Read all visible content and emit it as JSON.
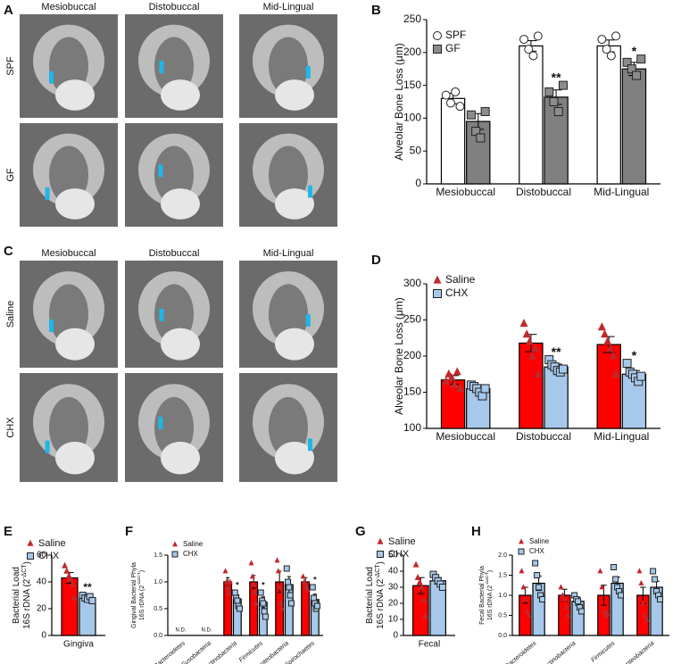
{
  "image_panels": [
    {
      "panel": "A",
      "columns": [
        "Mesiobuccal",
        "Distobuccal",
        "Mid-Lingual"
      ],
      "rows": [
        "SPF",
        "GF"
      ]
    },
    {
      "panel": "C",
      "columns": [
        "Mesiobuccal",
        "Distobuccal",
        "Mid-Lingual"
      ],
      "rows": [
        "Saline",
        "CHX"
      ]
    }
  ],
  "chart_data": [
    {
      "panel": "B",
      "type": "bar",
      "ylabel": [
        {
          "text": "Alveolar Bone Loss (μm)"
        }
      ],
      "categories": [
        "Mesiobuccal",
        "Distobuccal",
        "Mid-Lingual"
      ],
      "ylim": [
        0,
        250
      ],
      "yticks": [
        0,
        50,
        100,
        150,
        200,
        250
      ],
      "series": [
        {
          "name": "SPF",
          "color": "#ffffff",
          "point_color": "#ffffff",
          "marker": "circle",
          "values": [
            130,
            210,
            210
          ],
          "errors": [
            8,
            8,
            9
          ],
          "points": [
            [
              135,
              123,
              140,
              118
            ],
            [
              220,
              205,
              195,
              225
            ],
            [
              220,
              205,
              195,
              225
            ]
          ],
          "significance": [
            null,
            null,
            null
          ]
        },
        {
          "name": "GF",
          "color": "#808080",
          "point_color": "#8c8c8c",
          "marker": "square",
          "values": [
            95,
            132,
            175
          ],
          "errors": [
            12,
            11,
            10
          ],
          "points": [
            [
              105,
              80,
              70,
              110
            ],
            [
              140,
              125,
              110,
              150
            ],
            [
              185,
              175,
              165,
              190
            ]
          ],
          "significance": [
            null,
            "**",
            "*"
          ]
        }
      ]
    },
    {
      "panel": "D",
      "type": "bar",
      "ylabel": [
        {
          "text": "Alveolar Bone Loss (μm)"
        }
      ],
      "categories": [
        "Mesiobuccal",
        "Distobuccal",
        "Mid-Lingual"
      ],
      "ylim": [
        100,
        300
      ],
      "yticks": [
        100,
        150,
        200,
        250,
        300
      ],
      "series": [
        {
          "name": "Saline",
          "color": "#ff0000",
          "point_color": "#c0282c",
          "marker": "triangle",
          "values": [
            167,
            218,
            216
          ],
          "errors": [
            6,
            12,
            11
          ],
          "points": [
            [
              165,
              175,
              170,
              160,
              178,
              155
            ],
            [
              245,
              230,
              220,
              200,
              210,
              175
            ],
            [
              240,
              230,
              220,
              210,
              200,
              175
            ]
          ],
          "significance": [
            null,
            null,
            null
          ]
        },
        {
          "name": "CHX",
          "color": "#a6c8ea",
          "point_color": "#a6c8ea",
          "marker": "square",
          "values": [
            155,
            185,
            175
          ],
          "errors": [
            4,
            4,
            5
          ],
          "points": [
            [
              160,
              158,
              155,
              150,
              145,
              155
            ],
            [
              195,
              188,
              185,
              180,
              178,
              182
            ],
            [
              190,
              178,
              175,
              170,
              165,
              172
            ]
          ],
          "significance": [
            null,
            "**",
            "*"
          ]
        }
      ]
    },
    {
      "panel": "E",
      "type": "bar",
      "ylabel": [
        {
          "text": "Bacterial Load"
        },
        {
          "text": "16S rDNA (2",
          "sup": "-ΔCT",
          "tail": ")"
        }
      ],
      "categories": [
        "Gingiva"
      ],
      "ylim": [
        0,
        60
      ],
      "yticks": [
        0,
        20,
        40,
        60
      ],
      "series": [
        {
          "name": "Saline",
          "color": "#ff0000",
          "point_color": "#c0282c",
          "marker": "triangle",
          "values": [
            43
          ],
          "errors": [
            4
          ],
          "points": [
            [
              52,
              48,
              44,
              42,
              38,
              28
            ]
          ],
          "significance": [
            null
          ]
        },
        {
          "name": "CHX",
          "color": "#a6c8ea",
          "point_color": "#a6c8ea",
          "marker": "square",
          "values": [
            28
          ],
          "errors": [
            1.5
          ],
          "points": [
            [
              30,
              28,
              27,
              29,
              26
            ]
          ],
          "significance": [
            "**"
          ]
        }
      ]
    },
    {
      "panel": "F",
      "type": "bar",
      "rotate_labels": true,
      "ylabel": [
        {
          "text": "Gingival Bacterial Phyla"
        },
        {
          "text": "16S rDNA (2",
          "sup": "-ΔΔCT",
          "tail": ")"
        }
      ],
      "categories": [
        "Bacteroidetes",
        "Fusobacteria",
        "Actinobacteria",
        "Firmicutes",
        "Proteobacteria",
        "Spirochaetes"
      ],
      "nd_labels": [
        "N.D.",
        "N.D.",
        null,
        null,
        null,
        null
      ],
      "ylim": [
        0,
        1.5
      ],
      "yticks": [
        {
          "value": 0,
          "label": "0.0"
        },
        0.5,
        {
          "value": 1,
          "label": "1.0"
        },
        1.5
      ],
      "series": [
        {
          "name": "Saline",
          "color": "#ff0000",
          "point_color": "#c0282c",
          "marker": "triangle",
          "values": [
            null,
            null,
            1.0,
            1.0,
            1.0,
            1.0
          ],
          "errors": [
            null,
            null,
            0.08,
            0.12,
            0.2,
            0.08
          ],
          "points": [
            [],
            [],
            [
              1.2,
              1.0,
              0.9,
              0.8,
              1.0
            ],
            [
              1.35,
              1.1,
              0.95,
              0.8,
              0.6
            ],
            [
              1.4,
              1.2,
              0.9,
              0.6,
              0.5
            ],
            [
              1.1,
              1.0,
              0.95,
              0.9,
              0.85
            ]
          ],
          "significance": [
            null,
            null,
            null,
            null,
            null,
            null
          ]
        },
        {
          "name": "CHX",
          "color": "#a6c8ea",
          "point_color": "#a6c8ea",
          "marker": "square",
          "values": [
            null,
            null,
            0.68,
            0.62,
            0.95,
            0.67
          ],
          "errors": [
            null,
            null,
            0.08,
            0.1,
            0.15,
            0.1
          ],
          "points": [
            [],
            [],
            [
              0.8,
              0.7,
              0.65,
              0.55,
              0.5
            ],
            [
              0.8,
              0.65,
              0.6,
              0.45,
              0.35
            ],
            [
              1.25,
              1.0,
              0.9,
              0.75,
              0.6
            ],
            [
              0.9,
              0.7,
              0.6,
              0.5,
              0.55
            ]
          ],
          "significance": [
            null,
            null,
            "*",
            "*",
            null,
            "*"
          ]
        }
      ]
    },
    {
      "panel": "G",
      "type": "bar",
      "ylabel": [
        {
          "text": "Bacterial Load"
        },
        {
          "text": "16S rDNA (2",
          "sup": "-ΔCT",
          "tail": ")"
        }
      ],
      "categories": [
        "Fecal"
      ],
      "ylim": [
        0,
        50
      ],
      "yticks": [
        0,
        10,
        20,
        30,
        40,
        50
      ],
      "series": [
        {
          "name": "Saline",
          "color": "#ff0000",
          "point_color": "#c0282c",
          "marker": "triangle",
          "values": [
            31
          ],
          "errors": [
            5
          ],
          "points": [
            [
              44,
              36,
              33,
              30,
              22,
              12
            ]
          ],
          "significance": [
            null
          ]
        },
        {
          "name": "CHX",
          "color": "#a6c8ea",
          "point_color": "#a6c8ea",
          "marker": "square",
          "values": [
            34
          ],
          "errors": [
            2
          ],
          "points": [
            [
              38,
              36,
              34,
              32,
              30
            ]
          ],
          "significance": [
            null
          ]
        }
      ]
    },
    {
      "panel": "H",
      "type": "bar",
      "rotate_labels": true,
      "ylabel": [
        {
          "text": "Fecal Bacterial Phyla"
        },
        {
          "text": "16S rDNA (2",
          "sup": "-ΔΔCT",
          "tail": ")"
        }
      ],
      "categories": [
        "Bacteroidetes",
        "Actinobacteria",
        "Firmicutes",
        "Proteobacteria"
      ],
      "ylim": [
        0,
        2
      ],
      "yticks": [
        {
          "value": 0,
          "label": "0.0"
        },
        0.5,
        {
          "value": 1,
          "label": "1.0"
        },
        1.5,
        {
          "value": 2,
          "label": "2.0"
        }
      ],
      "series": [
        {
          "name": "Saline",
          "color": "#ff0000",
          "point_color": "#c0282c",
          "marker": "triangle",
          "values": [
            1.0,
            1.0,
            1.0,
            1.0
          ],
          "errors": [
            0.2,
            0.15,
            0.25,
            0.2
          ],
          "points": [
            [
              1.6,
              1.2,
              0.9,
              0.6,
              0.5
            ],
            [
              1.2,
              1.0,
              0.9,
              0.7,
              0.5
            ],
            [
              1.6,
              1.2,
              0.6,
              0.5,
              0.55
            ],
            [
              1.6,
              1.3,
              0.8,
              0.5,
              0.4
            ]
          ],
          "significance": [
            null,
            null,
            null,
            null
          ]
        },
        {
          "name": "CHX",
          "color": "#a6c8ea",
          "point_color": "#a6c8ea",
          "marker": "square",
          "values": [
            1.3,
            0.85,
            1.3,
            1.2
          ],
          "errors": [
            0.18,
            0.1,
            0.15,
            0.15
          ],
          "points": [
            [
              1.8,
              1.5,
              1.2,
              1.0,
              0.9
            ],
            [
              1.0,
              0.9,
              0.85,
              0.7,
              0.6
            ],
            [
              1.7,
              1.4,
              1.2,
              1.1,
              1.0
            ],
            [
              1.6,
              1.4,
              1.1,
              1.0,
              0.9
            ]
          ],
          "significance": [
            null,
            null,
            null,
            null
          ]
        }
      ]
    }
  ]
}
